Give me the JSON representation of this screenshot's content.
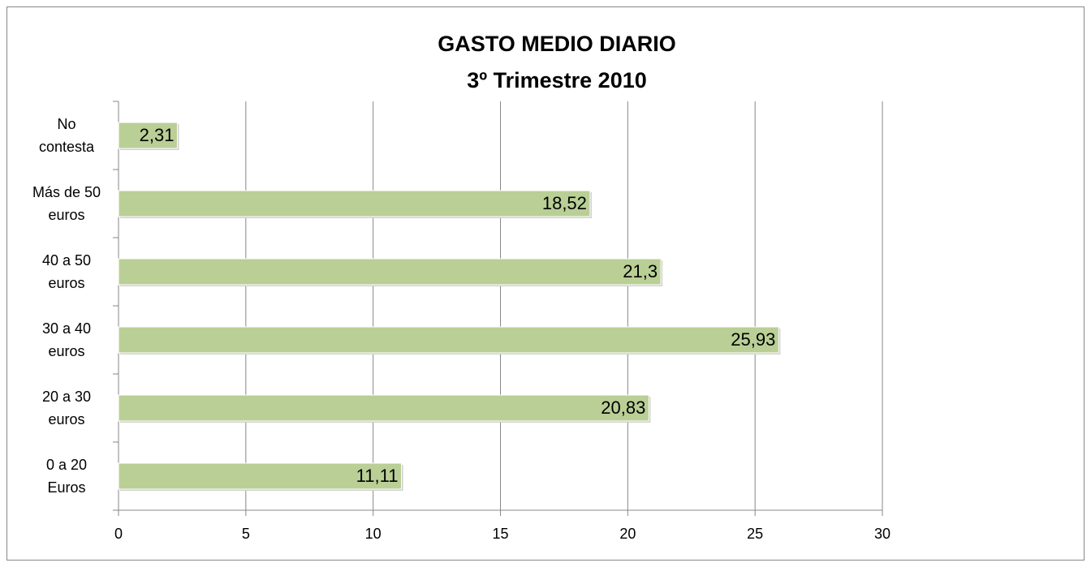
{
  "chart_data": {
    "type": "hbar",
    "title": "GASTO MEDIO DIARIO",
    "subtitle": "3º Trimestre 2010",
    "categories": [
      "0 a 20 Euros",
      "20 a 30 euros",
      "30 a 40 euros",
      "40 a 50 euros",
      "Más de 50 euros",
      "No contesta"
    ],
    "values": [
      11.11,
      20.83,
      25.93,
      21.3,
      18.52,
      2.31
    ],
    "value_labels": [
      "11,11",
      "20,83",
      "25,93",
      "21,3",
      "18,52",
      "2,31"
    ],
    "color": "#b9cf96",
    "xlim": [
      0,
      30
    ],
    "xticks": [
      0,
      5,
      10,
      15,
      20,
      25,
      30
    ],
    "grid": true
  }
}
